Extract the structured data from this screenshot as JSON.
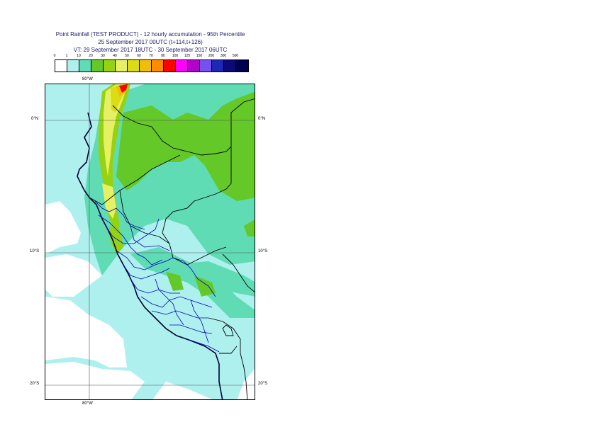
{
  "title": {
    "line1": "Point Rainfall (TEST PRODUCT) - 12 hourly accumulation - 95th Percentile",
    "line2": "25 September 2017 00UTC (t+114,t+126)",
    "line3": "VT: 29 September 2017 18UTC - 30 September 2017 06UTC"
  },
  "legend": {
    "labels": [
      "0",
      "1",
      "10",
      "20",
      "30",
      "40",
      "50",
      "60",
      "70",
      "80",
      "100",
      "125",
      "150",
      "200",
      "300",
      "500"
    ],
    "colors": [
      "#ffffff",
      "#aef0ee",
      "#5fdcb4",
      "#64c828",
      "#96d210",
      "#e6f064",
      "#dcdc14",
      "#f0be0a",
      "#ff8c00",
      "#ff0000",
      "#ff00ff",
      "#b400c8",
      "#7850f0",
      "#1e28b4",
      "#0a0a78",
      "#000050"
    ]
  },
  "axes": {
    "top_lon": "80°W",
    "bottom_lon": "80°W",
    "lat_0_left": "0°N",
    "lat_0_right": "0°N",
    "lat_10_left": "10°S",
    "lat_10_right": "10°S",
    "lat_20_left": "20°S",
    "lat_20_right": "20°S"
  }
}
